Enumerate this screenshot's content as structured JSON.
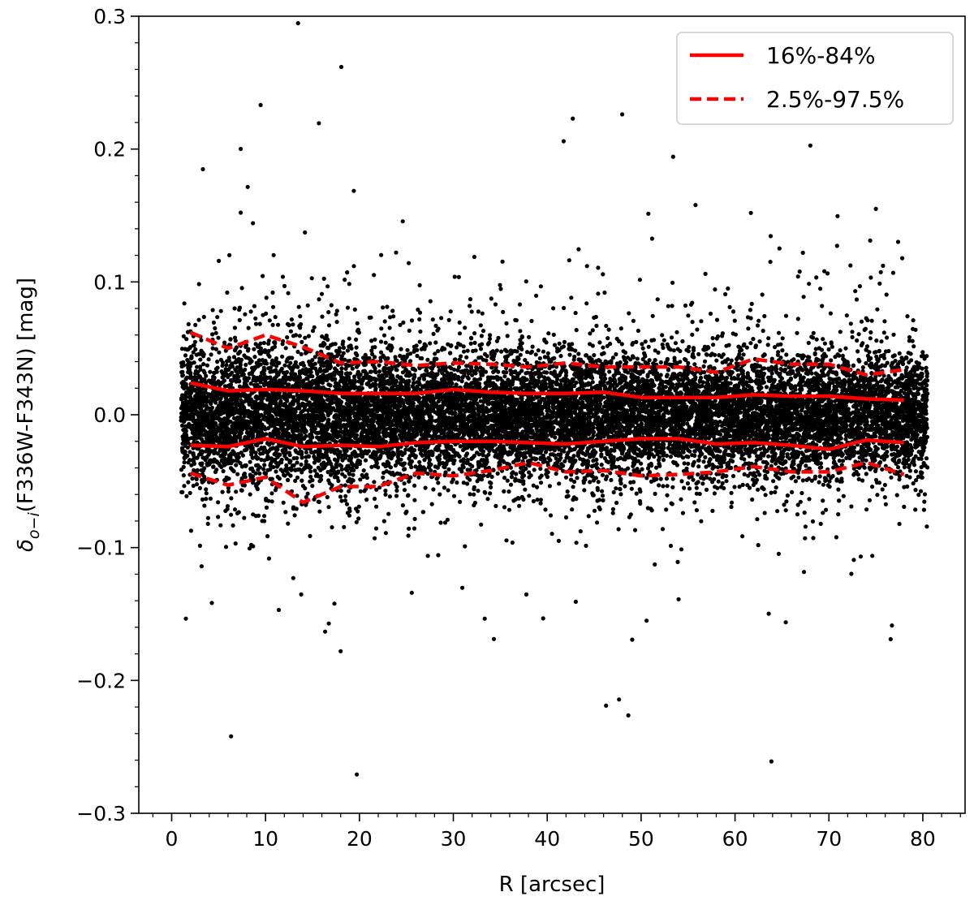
{
  "chart_data": {
    "type": "scatter",
    "xlabel": "R [arcsec]",
    "ylabel": "δo−i(F336W-F343N) [mag]",
    "ylabel_parts": {
      "delta": "δ",
      "subscript": "o−i",
      "rest": "(F336W-F343N) [mag]"
    },
    "xlim": [
      -3.5,
      84.5
    ],
    "ylim": [
      -0.3,
      0.3
    ],
    "xticks": [
      0,
      10,
      20,
      30,
      40,
      50,
      60,
      70,
      80
    ],
    "xtick_labels": [
      "0",
      "10",
      "20",
      "30",
      "40",
      "50",
      "60",
      "70",
      "80"
    ],
    "yticks": [
      -0.3,
      -0.2,
      -0.1,
      0.0,
      0.1,
      0.2,
      0.3
    ],
    "ytick_labels": [
      "−0.3",
      "−0.2",
      "−0.1",
      "0.0",
      "0.1",
      "0.2",
      "0.3"
    ],
    "x_minor_step": 2,
    "y_minor_step": 0.02,
    "grid": false,
    "legend_position": "top-right",
    "scatter_color": "#000000",
    "scatter_x_range": [
      1,
      80.5
    ],
    "scatter_core_sigma": 0.023,
    "scatter_point_count": 14000,
    "series": [
      {
        "name": "16%-84%",
        "style": "solid",
        "color": "#ff0000",
        "upper": {
          "x": [
            2,
            6,
            10,
            14,
            18,
            22,
            26,
            30,
            34,
            38,
            42,
            46,
            50,
            54,
            58,
            62,
            66,
            70,
            74,
            78
          ],
          "y": [
            0.024,
            0.018,
            0.019,
            0.018,
            0.016,
            0.016,
            0.016,
            0.019,
            0.017,
            0.016,
            0.016,
            0.017,
            0.013,
            0.013,
            0.013,
            0.015,
            0.014,
            0.014,
            0.012,
            0.011
          ]
        },
        "lower": {
          "x": [
            2,
            6,
            10,
            14,
            18,
            22,
            26,
            30,
            34,
            38,
            42,
            46,
            50,
            54,
            58,
            62,
            66,
            70,
            74,
            78
          ],
          "y": [
            -0.023,
            -0.024,
            -0.018,
            -0.024,
            -0.023,
            -0.024,
            -0.021,
            -0.02,
            -0.02,
            -0.021,
            -0.022,
            -0.02,
            -0.018,
            -0.018,
            -0.022,
            -0.021,
            -0.023,
            -0.026,
            -0.019,
            -0.021
          ]
        }
      },
      {
        "name": "2.5%-97.5%",
        "style": "dashed",
        "color": "#ff0000",
        "upper": {
          "x": [
            2,
            6,
            10,
            14,
            18,
            22,
            26,
            30,
            34,
            38,
            42,
            46,
            50,
            54,
            58,
            62,
            66,
            70,
            74,
            78
          ],
          "y": [
            0.062,
            0.05,
            0.06,
            0.051,
            0.039,
            0.04,
            0.037,
            0.039,
            0.038,
            0.036,
            0.039,
            0.036,
            0.036,
            0.036,
            0.032,
            0.042,
            0.038,
            0.038,
            0.03,
            0.034
          ]
        },
        "lower": {
          "x": [
            2,
            6,
            10,
            14,
            18,
            22,
            26,
            30,
            34,
            38,
            42,
            46,
            50,
            54,
            58,
            62,
            66,
            70,
            74,
            78
          ],
          "y": [
            -0.044,
            -0.053,
            -0.047,
            -0.066,
            -0.054,
            -0.054,
            -0.044,
            -0.046,
            -0.042,
            -0.036,
            -0.043,
            -0.042,
            -0.046,
            -0.045,
            -0.043,
            -0.039,
            -0.043,
            -0.043,
            -0.036,
            -0.045
          ]
        }
      }
    ]
  }
}
